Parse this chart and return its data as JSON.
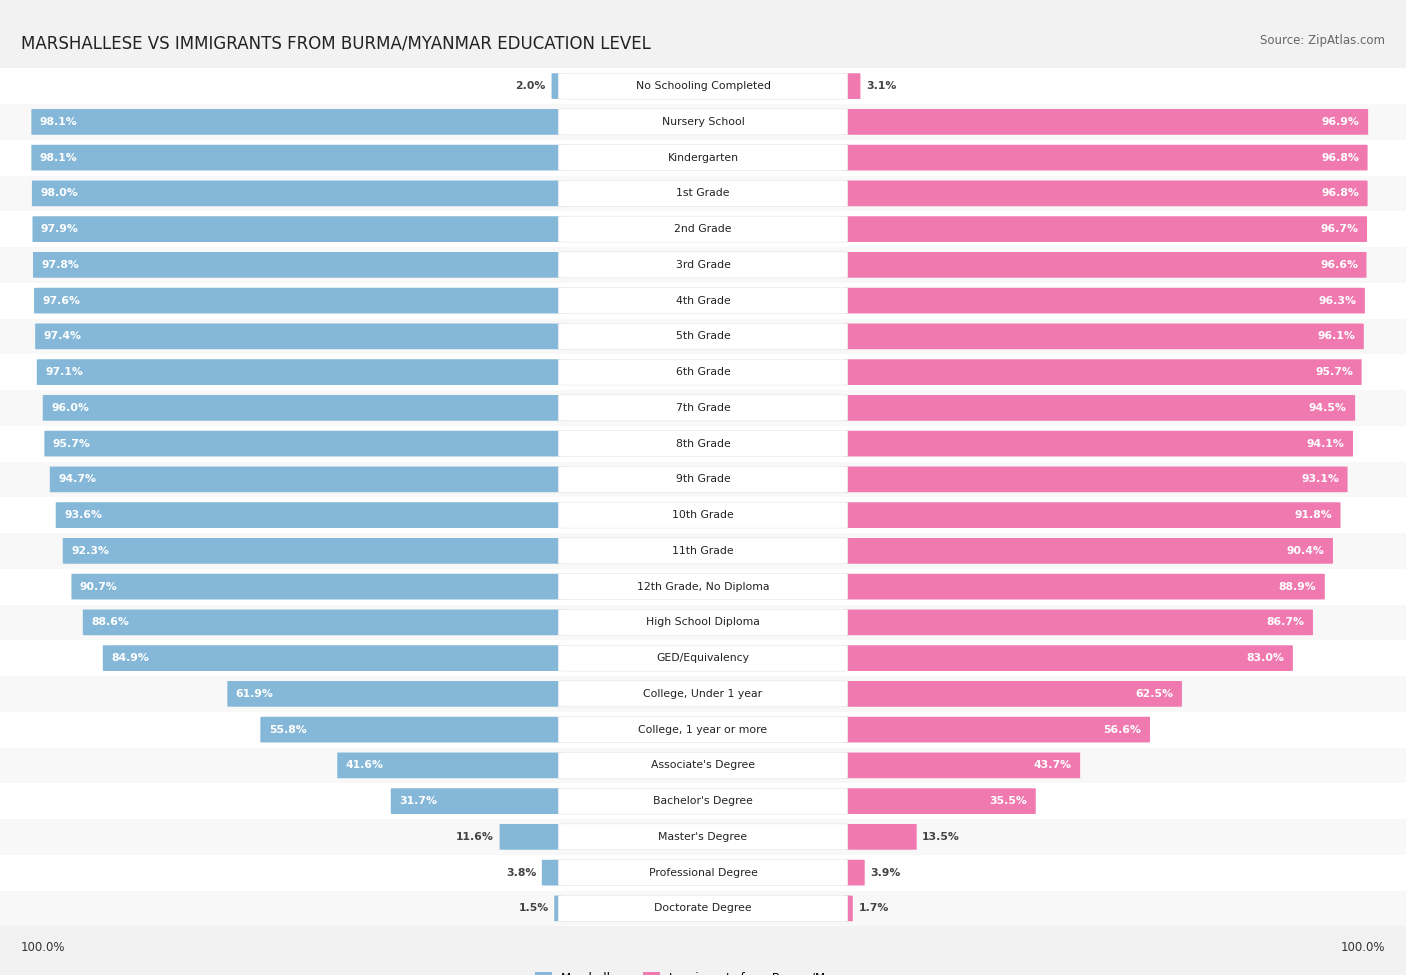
{
  "title": "MARSHALLESE VS IMMIGRANTS FROM BURMA/MYANMAR EDUCATION LEVEL",
  "source": "Source: ZipAtlas.com",
  "categories": [
    "No Schooling Completed",
    "Nursery School",
    "Kindergarten",
    "1st Grade",
    "2nd Grade",
    "3rd Grade",
    "4th Grade",
    "5th Grade",
    "6th Grade",
    "7th Grade",
    "8th Grade",
    "9th Grade",
    "10th Grade",
    "11th Grade",
    "12th Grade, No Diploma",
    "High School Diploma",
    "GED/Equivalency",
    "College, Under 1 year",
    "College, 1 year or more",
    "Associate's Degree",
    "Bachelor's Degree",
    "Master's Degree",
    "Professional Degree",
    "Doctorate Degree"
  ],
  "marshallese": [
    2.0,
    98.1,
    98.1,
    98.0,
    97.9,
    97.8,
    97.6,
    97.4,
    97.1,
    96.0,
    95.7,
    94.7,
    93.6,
    92.3,
    90.7,
    88.6,
    84.9,
    61.9,
    55.8,
    41.6,
    31.7,
    11.6,
    3.8,
    1.5
  ],
  "burma": [
    3.1,
    96.9,
    96.8,
    96.8,
    96.7,
    96.6,
    96.3,
    96.1,
    95.7,
    94.5,
    94.1,
    93.1,
    91.8,
    90.4,
    88.9,
    86.7,
    83.0,
    62.5,
    56.6,
    43.7,
    35.5,
    13.5,
    3.9,
    1.7
  ],
  "blue_color": "#85b8d8",
  "pink_color": "#f07ab0",
  "bg_color": "#f2f2f2",
  "row_bg_color": "#ffffff",
  "row_alt_color": "#f8f8f8",
  "title_fontsize": 12,
  "source_fontsize": 8.5,
  "label_fontsize": 7.8,
  "value_fontsize": 7.8,
  "legend_fontsize": 8.5,
  "footer_fontsize": 8.5
}
